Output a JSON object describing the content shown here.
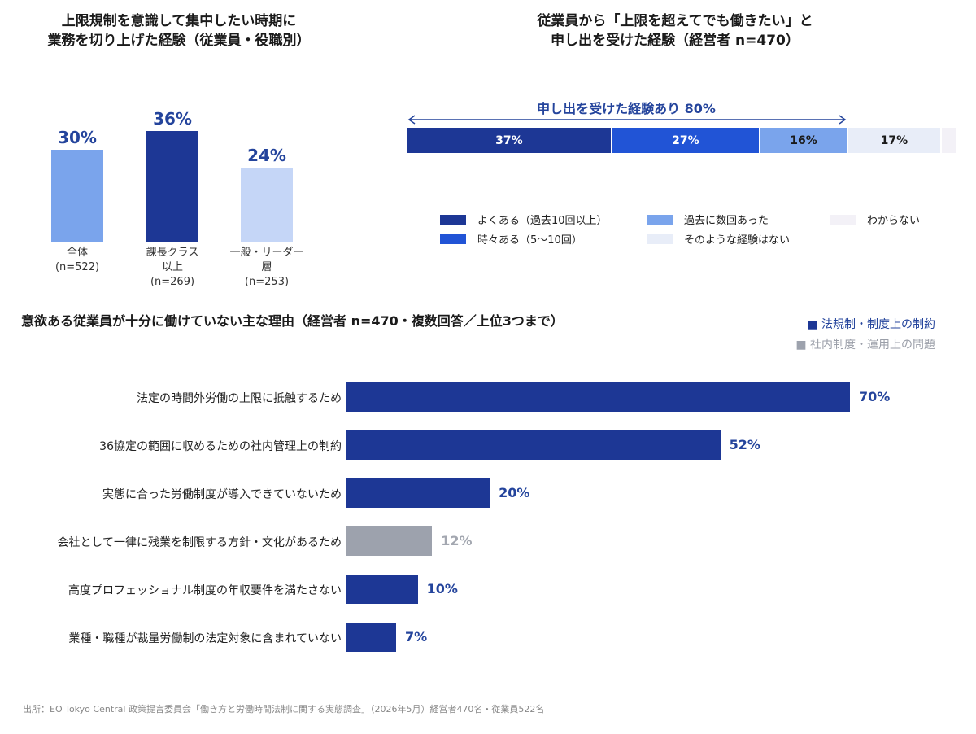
{
  "colors": {
    "navy": "#1d3795",
    "blue": "#2154d6",
    "mid_blue": "#7aa4ec",
    "light_blue": "#c5d6f7",
    "pale": "#e8edf8",
    "very_pale": "#f3f1f7",
    "gray": "#9da2ad",
    "accent_text": "#24449c"
  },
  "panel1": {
    "title_line1": "上限規制を意識して集中したい時期に",
    "title_line2": "業務を切り上げた経験（従業員・役職別）"
  },
  "panel2": {
    "title_line1": "従業員から「上限を超えてでも働きたい」と",
    "title_line2": "申し出を受けた経験（経営者 n=470）",
    "bracket_label": "申し出を受けた経験あり 80%"
  },
  "panel3": {
    "title": "意欲ある従業員が十分に働けていない主な理由（経営者 n=470・複数回答／上位3つまで）"
  },
  "source": "出所：EO Tokyo Central 政策提言委員会「働き方と労働時間法制に関する実態調査」（2026年5月）経営者470名・従業員522名",
  "chart_data": [
    {
      "type": "bar",
      "title": "上限規制を意識して集中したい時期に業務を切り上げた経験（従業員・役職別）",
      "categories": [
        {
          "line1": "全体",
          "line2": "(n=522)",
          "line3": ""
        },
        {
          "line1": "課長クラス",
          "line2": "以上",
          "line3": "(n=269)"
        },
        {
          "line1": "一般・リーダー",
          "line2": "層",
          "line3": "(n=253)"
        }
      ],
      "values": [
        30,
        36,
        24
      ],
      "value_labels": [
        "30%",
        "36%",
        "24%"
      ],
      "colors": [
        "#7aa4ec",
        "#1d3795",
        "#c5d6f7"
      ],
      "ylim": [
        0,
        40
      ],
      "grid": false
    },
    {
      "type": "bar",
      "orientation": "horizontal-stacked",
      "title": "従業員から「上限を超えてでも働きたい」と申し出を受けた経験（経営者 n=470）",
      "series": [
        {
          "name": "よくある（過去10回以上）",
          "values": [
            37
          ],
          "label": "37%",
          "color": "#1d3795"
        },
        {
          "name": "時々ある（5〜10回）",
          "values": [
            27
          ],
          "label": "27%",
          "color": "#2154d6"
        },
        {
          "name": "過去に数回あった",
          "values": [
            16
          ],
          "label": "16%",
          "color": "#7aa4ec"
        },
        {
          "name": "そのような経験はない",
          "values": [
            17
          ],
          "label": "17%",
          "color": "#e8edf8"
        },
        {
          "name": "わからない",
          "values": [
            3
          ],
          "label": "",
          "color": "#f3f1f7"
        }
      ],
      "annotation": "申し出を受けた経験あり 80%",
      "legend": "bottom"
    },
    {
      "type": "bar",
      "orientation": "horizontal",
      "title": "意欲ある従業員が十分に働けていない主な理由（経営者 n=470・複数回答／上位3つまで）",
      "categories": [
        "法定の時間外労働の上限に抵触するため",
        "36協定の範囲に収めるための社内管理上の制約",
        "実態に合った労働制度が導入できていないため",
        "会社として一律に残業を制限する方針・文化があるため",
        "高度プロフェッショナル制度の年収要件を満たさない",
        "業種・職種が裁量労働制の法定対象に含まれていない"
      ],
      "values": [
        70,
        52,
        20,
        12,
        10,
        7
      ],
      "value_labels": [
        "70%",
        "52%",
        "20%",
        "12%",
        "10%",
        "7%"
      ],
      "groups": [
        "law",
        "law",
        "law",
        "internal",
        "law",
        "law"
      ],
      "legend": [
        {
          "key": "law",
          "label": "法規制・制度上の制約",
          "color": "#1d3795"
        },
        {
          "key": "internal",
          "label": "社内制度・運用上の問題",
          "color": "#9da2ad"
        }
      ],
      "legend_position": "top-right",
      "xlim": [
        0,
        70
      ],
      "grid": false
    }
  ]
}
